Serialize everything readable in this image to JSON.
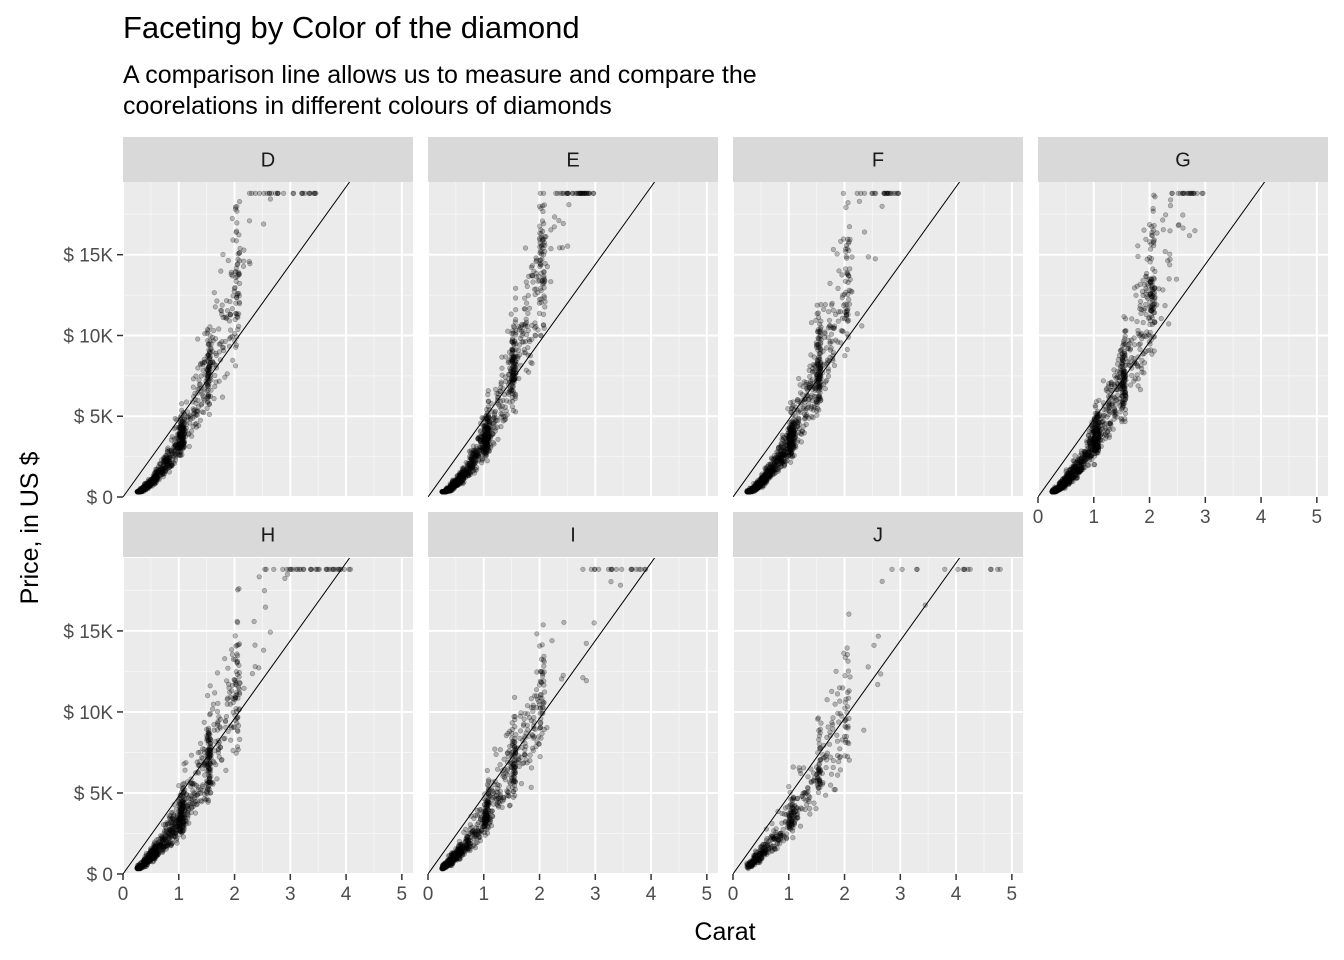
{
  "chart_data": {
    "type": "scatter",
    "title": "Faceting by Color of the diamond",
    "subtitle_lines": [
      "A comparison line allows us to measure and compare the",
      "coorelations in different colours of diamonds"
    ],
    "xlabel": "Carat",
    "ylabel": "Price, in US $",
    "xlim": [
      0,
      5.2
    ],
    "ylim": [
      0,
      19500
    ],
    "x_ticks": [
      0,
      1,
      2,
      3,
      4,
      5
    ],
    "x_tick_labels": [
      "0",
      "1",
      "2",
      "3",
      "4",
      "5"
    ],
    "y_ticks": [
      0,
      5000,
      10000,
      15000
    ],
    "y_tick_labels": [
      "$ 0",
      "$ 5K",
      "$ 10K",
      "$ 15K"
    ],
    "grid": true,
    "reference_line": {
      "intercept": 0,
      "slope": 4800
    },
    "facet_layout": {
      "ncol": 4,
      "nrow": 2
    },
    "facets": [
      {
        "label": "D",
        "n": 900,
        "shape": 1.9,
        "maxcarat": 3.5,
        "spread": 0.24
      },
      {
        "label": "E",
        "n": 1100,
        "shape": 2.0,
        "maxcarat": 3.0,
        "spread": 0.24
      },
      {
        "label": "F",
        "n": 1100,
        "shape": 1.9,
        "maxcarat": 3.0,
        "spread": 0.25
      },
      {
        "label": "G",
        "n": 1250,
        "shape": 1.8,
        "maxcarat": 3.0,
        "spread": 0.25
      },
      {
        "label": "H",
        "n": 1000,
        "shape": 1.7,
        "maxcarat": 4.1,
        "spread": 0.26
      },
      {
        "label": "I",
        "n": 800,
        "shape": 1.6,
        "maxcarat": 4.0,
        "spread": 0.26
      },
      {
        "label": "J",
        "n": 500,
        "shape": 1.5,
        "maxcarat": 5.0,
        "spread": 0.27
      }
    ],
    "point_color": "#000000",
    "point_opacity": 0.25,
    "panel_background": "#ebebeb",
    "strip_background": "#d9d9d9"
  }
}
